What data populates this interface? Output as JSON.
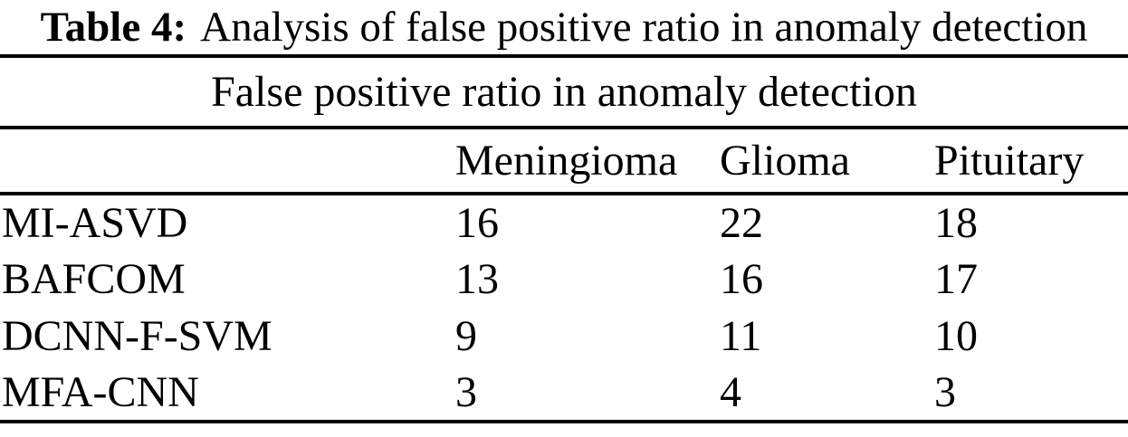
{
  "page": {
    "background_color": "#ffffff",
    "text_color": "#000000",
    "rule_color": "#000000"
  },
  "caption": {
    "label": "Table 4:",
    "text": "Analysis of false positive ratio in anomaly detection"
  },
  "table": {
    "span_header": "False positive ratio in anomaly detection",
    "columns": [
      "",
      "Meningioma",
      "Glioma",
      "Pituitary"
    ],
    "rows": [
      {
        "method": "MI-ASVD",
        "values": [
          16,
          22,
          18
        ]
      },
      {
        "method": "BAFCOM",
        "values": [
          13,
          16,
          17
        ]
      },
      {
        "method": "DCNN-F-SVM",
        "values": [
          9,
          11,
          10
        ]
      },
      {
        "method": "MFA-CNN",
        "values": [
          3,
          4,
          3
        ]
      }
    ]
  },
  "chart_data": {
    "type": "table",
    "title": "Table 4: Analysis of false positive ratio in anomaly detection",
    "subtitle": "False positive ratio in anomaly detection",
    "columns": [
      "",
      "Meningioma",
      "Glioma",
      "Pituitary"
    ],
    "rows": [
      [
        "MI-ASVD",
        16,
        22,
        18
      ],
      [
        "BAFCOM",
        13,
        16,
        17
      ],
      [
        "DCNN-F-SVM",
        9,
        11,
        10
      ],
      [
        "MFA-CNN",
        3,
        4,
        3
      ]
    ]
  }
}
